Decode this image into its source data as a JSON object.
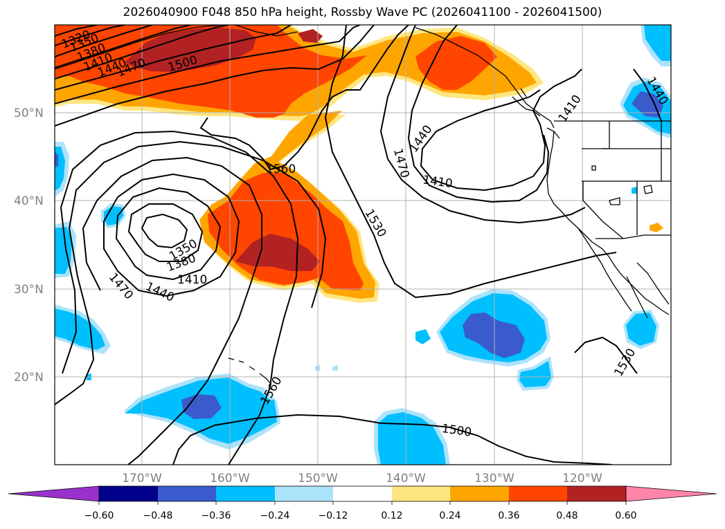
{
  "title": "2026040900 F048 850 hPa height, Rossby Wave PC (2026041100 - 2026041500)",
  "map": {
    "lat_labels": [
      "50°N",
      "40°N",
      "30°N",
      "20°N"
    ],
    "lon_labels": [
      "170°W",
      "160°W",
      "150°W",
      "140°W",
      "130°W",
      "120°W"
    ],
    "contour_labels": [
      {
        "text": "1320"
      },
      {
        "text": "1350"
      },
      {
        "text": "1380"
      },
      {
        "text": "1410"
      },
      {
        "text": "1440"
      },
      {
        "text": "1470"
      },
      {
        "text": "1500"
      },
      {
        "text": "1560"
      },
      {
        "text": "1350"
      },
      {
        "text": "1380"
      },
      {
        "text": "1410"
      },
      {
        "text": "1440"
      },
      {
        "text": "1470"
      },
      {
        "text": "1530"
      },
      {
        "text": "1470"
      },
      {
        "text": "1440"
      },
      {
        "text": "1410"
      },
      {
        "text": "1410"
      },
      {
        "text": "1440"
      },
      {
        "text": "1560"
      },
      {
        "text": "1500"
      },
      {
        "text": "1530"
      }
    ]
  },
  "colorbar": {
    "tick_labels": [
      "−0.60",
      "−0.48",
      "−0.36",
      "−0.24",
      "−0.12",
      "0.12",
      "0.24",
      "0.36",
      "0.48",
      "0.60"
    ],
    "colors": [
      "#9932CC",
      "#00008B",
      "#3A5BCC",
      "#00BFFF",
      "#ADE3FA",
      "#FFFFFF",
      "#FFE680",
      "#FFA500",
      "#FF4500",
      "#B22222",
      "#FF85A8"
    ]
  },
  "palette": {
    "pos_light": "#FFE680",
    "pos_orange": "#FFA500",
    "pos_red": "#FF4500",
    "pos_dark": "#B22222",
    "neg_light": "#ADE3FA",
    "neg_blue": "#00BFFF",
    "neg_mid": "#3A5BCC",
    "neg_dark": "#00008B"
  }
}
